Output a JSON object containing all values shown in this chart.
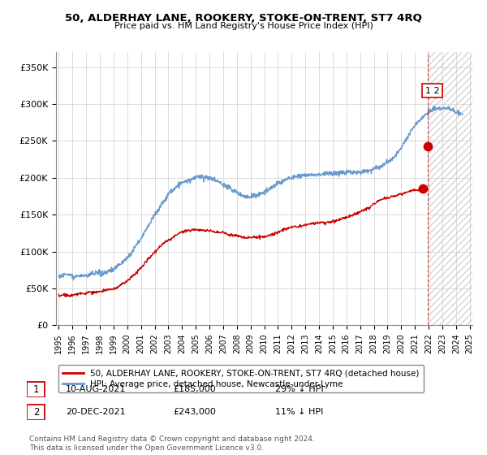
{
  "title": "50, ALDERHAY LANE, ROOKERY, STOKE-ON-TRENT, ST7 4RQ",
  "subtitle": "Price paid vs. HM Land Registry's House Price Index (HPI)",
  "legend_label_red": "50, ALDERHAY LANE, ROOKERY, STOKE-ON-TRENT, ST7 4RQ (detached house)",
  "legend_label_blue": "HPI: Average price, detached house, Newcastle-under-Lyme",
  "sale1_date": "10-AUG-2021",
  "sale1_price": "£185,000",
  "sale1_hpi": "29% ↓ HPI",
  "sale2_date": "20-DEC-2021",
  "sale2_price": "£243,000",
  "sale2_hpi": "11% ↓ HPI",
  "footer": "Contains HM Land Registry data © Crown copyright and database right 2024.\nThis data is licensed under the Open Government Licence v3.0.",
  "red_color": "#cc0000",
  "blue_color": "#6699cc",
  "background_color": "#ffffff",
  "grid_color": "#cccccc",
  "ylim": [
    0,
    370000
  ],
  "yticks": [
    0,
    50000,
    100000,
    150000,
    200000,
    250000,
    300000,
    350000
  ],
  "ytick_labels": [
    "£0",
    "£50K",
    "£100K",
    "£150K",
    "£200K",
    "£250K",
    "£300K",
    "£350K"
  ],
  "sale1_x": 2021.61,
  "sale1_y": 185000,
  "sale2_x": 2021.97,
  "sale2_y": 243000,
  "dashed_line_x": 2021.97,
  "hatch_start_x": 2021.97,
  "xmin": 1994.8,
  "xmax": 2025.2
}
